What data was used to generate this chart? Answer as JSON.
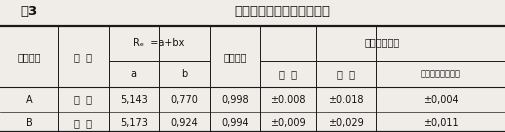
{
  "title": "室内标定和田间标定的结果",
  "table_label": "表3",
  "row_A": [
    "A",
    "土  壤",
    "5,143",
    "0,770",
    "0,998",
    "±0.008",
    "±0.018",
    "±0,004"
  ],
  "row_B": [
    "B",
    "大  田",
    "5,173",
    "0,924",
    "0,994",
    "±0,009",
    "±0,029",
    "±0,011"
  ],
  "h1_labels": [
    "方程编号",
    "土  壤",
    "Rₑ  =a+bx",
    "相关系数",
    "水分标准误差"
  ],
  "h2_labels": [
    "a",
    "b",
    "平  均",
    "最  大",
    "与烘干法相对标准"
  ],
  "background_color": "#f0ede8",
  "line_color": "#1a1a1a",
  "text_color": "#111111",
  "font_size": 7.0,
  "title_font_size": 9.5,
  "label_font_size": 7.5
}
